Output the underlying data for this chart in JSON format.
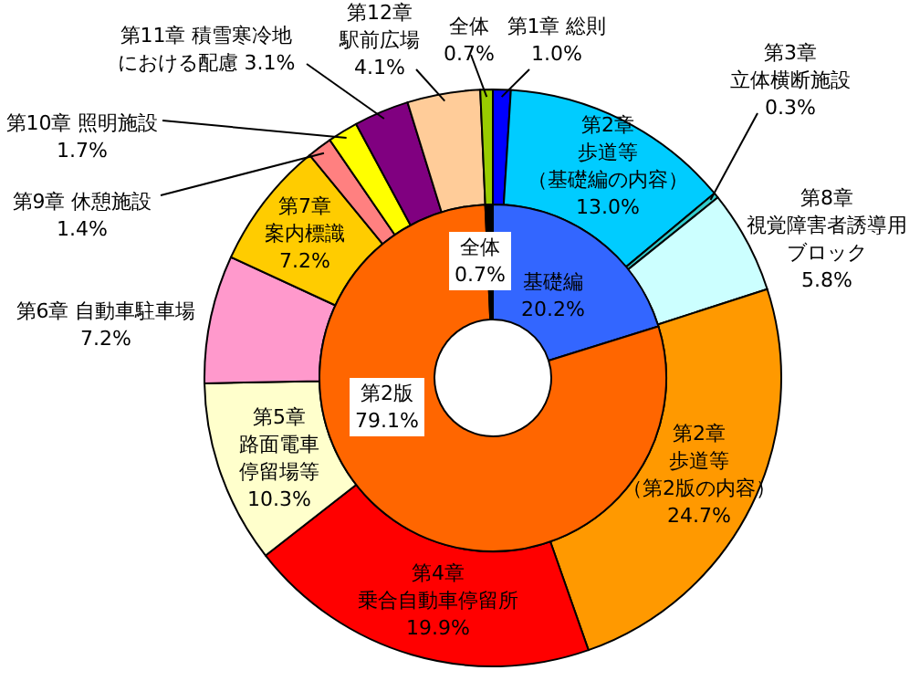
{
  "chart_data": [
    {
      "type": "donut",
      "categories": [
        "第1章 総則",
        "第2章歩道等（基礎編の内容）",
        "第3章立体横断施設",
        "第8章視覚障害者誘導用ブロック",
        "第2章歩道等（第2版の内容）",
        "第4章乗合自動車停留所",
        "第5章路面電車停留場等",
        "第6章 自動車駐車場",
        "第7章案内標識",
        "第9章 休憩施設",
        "第10章 照明施設",
        "第11章 積雪寒冷地における配慮",
        "第12章駅前広場",
        "全体"
      ],
      "values": [
        1.0,
        13.0,
        0.3,
        5.8,
        24.7,
        19.9,
        10.3,
        7.2,
        7.2,
        1.4,
        1.7,
        3.1,
        4.1,
        0.7
      ],
      "value_labels": [
        "1.0%",
        "13.0%",
        "0.3%",
        "5.8%",
        "24.7%",
        "19.9%",
        "10.3%",
        "7.2%",
        "7.2%",
        "1.4%",
        "1.7%",
        "3.1%",
        "4.1%",
        "0.7%"
      ],
      "colors": [
        "#0000ff",
        "#00ccff",
        "#33cccc",
        "#ccffff",
        "#ff9900",
        "#ff0000",
        "#ffffcc",
        "#ff99cc",
        "#ffcc00",
        "#ff8080",
        "#ffff00",
        "#800080",
        "#ffcc99",
        "#99cc00"
      ]
    },
    {
      "type": "donut",
      "categories": [
        "基礎編",
        "第2版",
        "全体"
      ],
      "values": [
        20.2,
        79.1,
        0.7
      ],
      "value_labels": [
        "20.2%",
        "79.1%",
        "0.7%"
      ],
      "colors": [
        "#3366ff",
        "#ff6600",
        "#000000"
      ]
    }
  ]
}
